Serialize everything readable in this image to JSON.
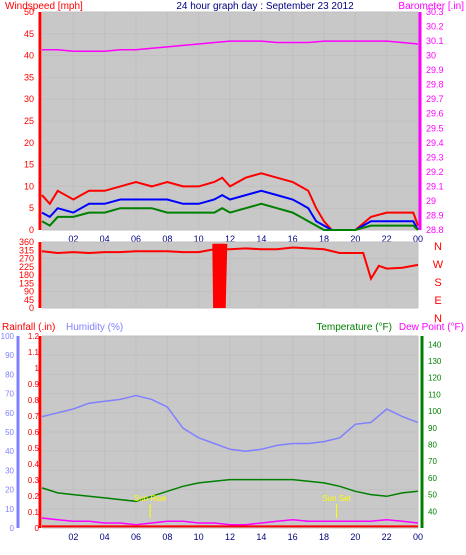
{
  "header": {
    "left": "Windspeed [mph]",
    "center": "24 hour graph day : September 23 2012",
    "right": "Barometer [.in]"
  },
  "panel3_titles": {
    "rain": "Rainfall (.in)",
    "hum": "Humidity (%)",
    "temp": "Temperature (°F)",
    "dew": "Dew Point (°F)"
  },
  "annotations": {
    "sunrise": "Sun Rise",
    "sunset": "Sun Set"
  },
  "colors": {
    "wind": "#ff0000",
    "wind_avg": "#0000ff",
    "gust_low": "#008000",
    "barometer": "#ff00ff",
    "direction": "#ff0000",
    "rain": "#ff0000",
    "humidity": "#8080ff",
    "temperature": "#008000",
    "dewpoint": "#ff00ff",
    "grid": "#c0c0c0",
    "bg": "#c8c8c8",
    "sun": "#ffff00"
  },
  "chart_data": [
    {
      "type": "line",
      "x_ticks": [
        "02",
        "04",
        "06",
        "08",
        "10",
        "12",
        "14",
        "16",
        "18",
        "20",
        "22",
        "00"
      ],
      "xlim": [
        0,
        24
      ],
      "left_axis": {
        "label": "Windspeed [mph]",
        "ylim": [
          0,
          50
        ],
        "ticks": [
          "0",
          "5",
          "10",
          "15",
          "20",
          "25",
          "30",
          "35",
          "40",
          "45",
          "50"
        ]
      },
      "right_axis": {
        "label": "Barometer [.in]",
        "ylim": [
          28.8,
          30.3
        ],
        "ticks": [
          "28.8",
          "28.9",
          "29",
          "29.1",
          "29.2",
          "29.3",
          "29.4",
          "29.5",
          "29.6",
          "29.7",
          "29.8",
          "29.9",
          "30",
          "30.1",
          "30.2",
          "30.3"
        ]
      },
      "grid": true,
      "series": [
        {
          "key": "barometer",
          "axis": "right",
          "x": [
            0,
            1,
            2,
            3,
            4,
            5,
            6,
            7,
            8,
            9,
            10,
            11,
            12,
            13,
            14,
            15,
            16,
            17,
            18,
            19,
            20,
            21,
            22,
            23,
            24
          ],
          "y": [
            30.04,
            30.04,
            30.03,
            30.03,
            30.03,
            30.04,
            30.04,
            30.05,
            30.06,
            30.07,
            30.08,
            30.09,
            30.1,
            30.1,
            30.1,
            30.09,
            30.09,
            30.09,
            30.1,
            30.1,
            30.1,
            30.1,
            30.1,
            30.09,
            30.08
          ]
        },
        {
          "key": "gust",
          "axis": "left",
          "x": [
            0,
            0.5,
            1,
            2,
            3,
            4,
            5,
            6,
            7,
            8,
            9,
            10,
            11,
            11.5,
            12,
            13,
            14,
            15,
            16,
            16.5,
            17,
            17.5,
            18,
            18.5,
            19,
            20,
            21,
            22,
            23,
            23.7,
            24
          ],
          "y": [
            8,
            6,
            9,
            7,
            9,
            9,
            10,
            11,
            10,
            11,
            10,
            10,
            11,
            12,
            10,
            12,
            13,
            12,
            11,
            10,
            9,
            5,
            2,
            0,
            0,
            0,
            3,
            4,
            4,
            4,
            1
          ]
        },
        {
          "key": "wind_avg",
          "axis": "left",
          "x": [
            0,
            0.5,
            1,
            2,
            3,
            4,
            5,
            6,
            7,
            8,
            9,
            10,
            11,
            11.5,
            12,
            13,
            14,
            15,
            16,
            16.5,
            17,
            17.5,
            18,
            18.5,
            19,
            20,
            21,
            22,
            23,
            23.7,
            24
          ],
          "y": [
            4,
            3,
            5,
            4,
            6,
            6,
            7,
            7,
            7,
            7,
            6,
            6,
            7,
            8,
            7,
            8,
            9,
            8,
            7,
            6,
            5,
            2,
            1,
            0,
            0,
            0,
            2,
            2,
            2,
            2,
            0
          ]
        },
        {
          "key": "wind_low",
          "axis": "left",
          "x": [
            0,
            0.5,
            1,
            2,
            3,
            4,
            5,
            6,
            7,
            8,
            9,
            10,
            11,
            11.5,
            12,
            13,
            14,
            15,
            16,
            16.5,
            17,
            17.5,
            18,
            18.5,
            19,
            20,
            21,
            22,
            23,
            23.7,
            24
          ],
          "y": [
            2,
            1,
            3,
            3,
            4,
            4,
            5,
            5,
            5,
            4,
            4,
            4,
            4,
            5,
            4,
            5,
            6,
            5,
            4,
            3,
            2,
            1,
            0,
            0,
            0,
            0,
            1,
            1,
            1,
            1,
            0
          ]
        }
      ]
    },
    {
      "type": "line",
      "x_ticks": [
        "02",
        "04",
        "06",
        "08",
        "10",
        "12",
        "14",
        "16",
        "18",
        "20",
        "22",
        "00"
      ],
      "xlim": [
        0,
        24
      ],
      "left_axis": {
        "ylim": [
          0,
          360
        ],
        "ticks": [
          "0",
          "45",
          "90",
          "135",
          "180",
          "225",
          "270",
          "315",
          "360"
        ]
      },
      "right_axis": {
        "ticks": [
          "N",
          "W",
          "S",
          "E",
          "N"
        ]
      },
      "grid": true,
      "series": [
        {
          "key": "direction",
          "x": [
            0,
            1,
            2,
            3,
            4,
            5,
            6,
            7,
            8,
            9,
            10,
            11,
            12,
            13,
            14,
            15,
            16,
            17,
            18,
            19,
            20,
            20.5,
            21,
            21.5,
            22,
            23,
            24
          ],
          "y": [
            310,
            300,
            305,
            300,
            305,
            305,
            310,
            310,
            310,
            305,
            305,
            320,
            320,
            325,
            320,
            320,
            330,
            325,
            320,
            300,
            300,
            300,
            160,
            230,
            215,
            220,
            235
          ]
        },
        {
          "key": "direction_gap",
          "x": [
            11.0,
            11.05,
            11.1,
            11.2,
            11.3,
            11.4,
            11.5,
            11.6,
            11.7
          ],
          "y": [
            350,
            0,
            350,
            0,
            350,
            0,
            350,
            0,
            350
          ]
        }
      ]
    },
    {
      "type": "line",
      "x_ticks": [
        "02",
        "04",
        "06",
        "08",
        "10",
        "12",
        "14",
        "16",
        "18",
        "20",
        "22",
        "00"
      ],
      "xlim": [
        0,
        24
      ],
      "rain_axis": {
        "label": "Rainfall (.in)",
        "ylim": [
          0,
          1.2
        ],
        "ticks": [
          "0",
          "0.1",
          "0.2",
          "0.3",
          "0.4",
          "0.5",
          "0.6",
          "0.7",
          "0.8",
          "0.9",
          "1",
          "1.1",
          "1.2"
        ]
      },
      "humidity_axis": {
        "label": "Humidity (%)",
        "ylim": [
          0,
          100
        ],
        "ticks": [
          "0",
          "10",
          "20",
          "30",
          "40",
          "50",
          "60",
          "70",
          "80",
          "90",
          "100"
        ]
      },
      "temp_axis": {
        "label": "Temperature (°F)",
        "ylim": [
          30,
          145
        ],
        "ticks": [
          "40",
          "50",
          "60",
          "70",
          "80",
          "90",
          "100",
          "110",
          "120",
          "130",
          "140"
        ]
      },
      "grid": true,
      "series": [
        {
          "key": "humidity",
          "axis": "humidity",
          "x": [
            0,
            1,
            2,
            3,
            4,
            5,
            6,
            7,
            8,
            9,
            10,
            11,
            12,
            13,
            14,
            15,
            16,
            17,
            18,
            19,
            20,
            21,
            22,
            23,
            24
          ],
          "y": [
            58,
            60,
            62,
            65,
            66,
            67,
            69,
            67,
            63,
            52,
            47,
            44,
            41,
            40,
            41,
            43,
            44,
            44,
            45,
            47,
            54,
            55,
            62,
            58,
            55
          ]
        },
        {
          "key": "temperature",
          "axis": "temp",
          "x": [
            0,
            1,
            2,
            3,
            4,
            5,
            6,
            7,
            8,
            9,
            10,
            11,
            12,
            13,
            14,
            15,
            16,
            17,
            18,
            19,
            20,
            21,
            22,
            23,
            24
          ],
          "y": [
            54,
            51,
            50,
            49,
            48,
            47,
            46,
            49,
            52,
            55,
            57,
            58,
            59,
            59,
            59,
            59,
            59,
            58,
            57,
            55,
            52,
            50,
            49,
            51,
            52
          ]
        },
        {
          "key": "dewpoint",
          "axis": "temp",
          "x": [
            0,
            1,
            2,
            3,
            4,
            5,
            6,
            7,
            8,
            9,
            10,
            11,
            12,
            13,
            14,
            15,
            16,
            17,
            18,
            19,
            20,
            21,
            22,
            23,
            24
          ],
          "y": [
            36,
            35,
            34,
            34,
            33,
            33,
            32,
            33,
            34,
            34,
            33,
            33,
            32,
            32,
            33,
            34,
            35,
            34,
            34,
            34,
            34,
            34,
            35,
            34,
            33
          ]
        },
        {
          "key": "rain",
          "axis": "rain",
          "x": [
            0,
            24
          ],
          "y": [
            0.01,
            0.01
          ]
        }
      ],
      "markers": [
        {
          "label": "Sun Rise",
          "x": 6.9
        },
        {
          "label": "Sun Set",
          "x": 18.8
        }
      ]
    }
  ]
}
